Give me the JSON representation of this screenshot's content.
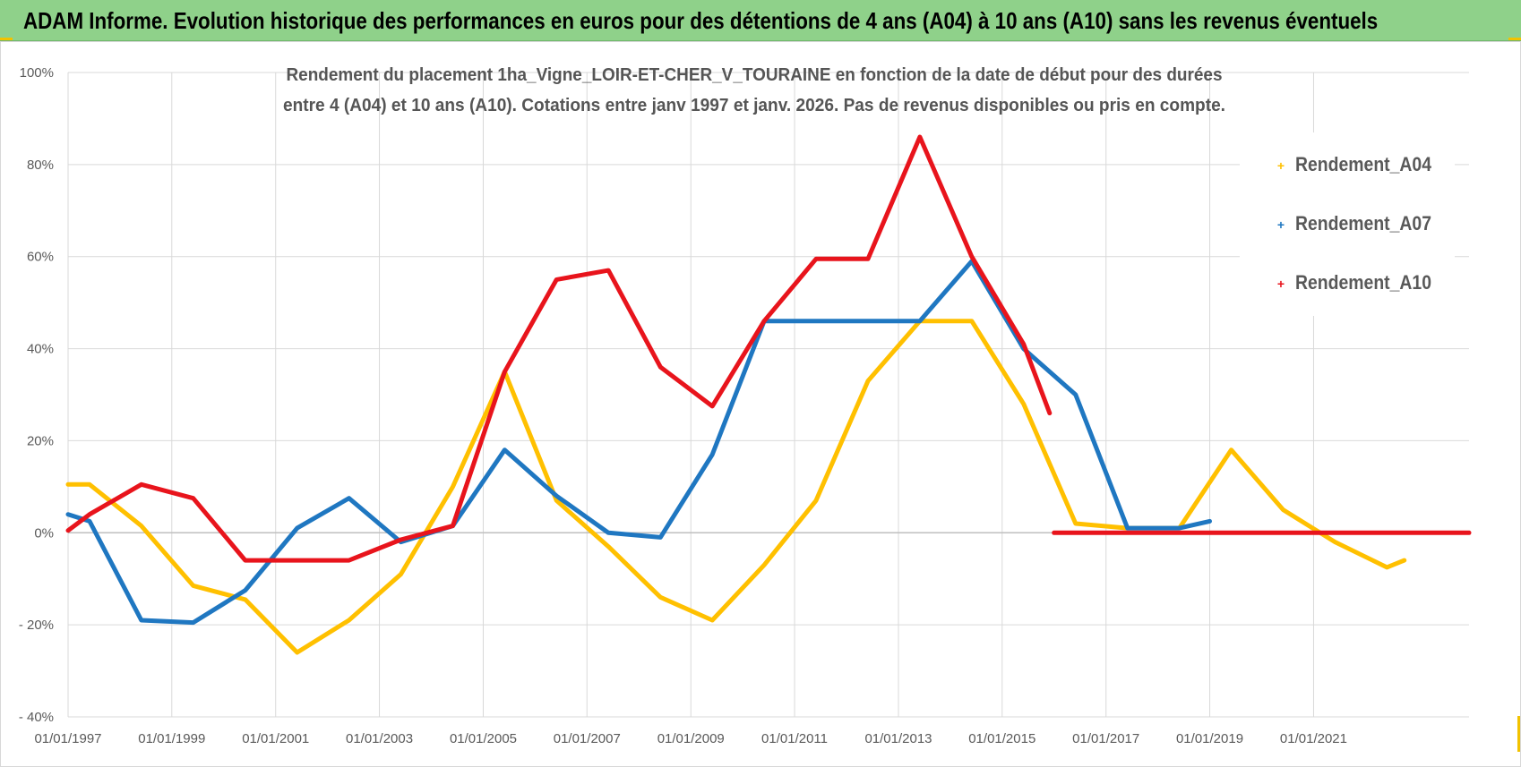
{
  "header": {
    "title": "ADAM Informe. Evolution historique des performances en euros pour des détentions de 4 ans (A04) à 10 ans (A10) sans les revenus éventuels"
  },
  "chart_data": {
    "type": "line",
    "title_lines": [
      "Rendement du placement 1ha_Vigne_LOIR-ET-CHER_V_TOURAINE en fonction de la date de début pour des durées",
      "entre 4 (A04) et 10 ans (A10).  Cotations entre janv 1997 et janv. 2026. Pas de revenus disponibles ou pris en compte."
    ],
    "xlabel": "",
    "ylabel": "",
    "xlim": [
      "1997-01-01",
      "2023-12-31"
    ],
    "ylim": [
      -40,
      100
    ],
    "x_ticks": [
      "01/01/1997",
      "01/01/1999",
      "01/01/2001",
      "01/01/2003",
      "01/01/2005",
      "01/01/2007",
      "01/01/2009",
      "01/01/2011",
      "01/01/2013",
      "01/01/2015",
      "01/01/2017",
      "01/01/2019",
      "01/01/2021"
    ],
    "y_ticks": [
      {
        "value": 100,
        "label": "100%"
      },
      {
        "value": 80,
        "label": "80%"
      },
      {
        "value": 60,
        "label": "60%"
      },
      {
        "value": 40,
        "label": "40%"
      },
      {
        "value": 20,
        "label": "20%"
      },
      {
        "value": 0,
        "label": "0%"
      },
      {
        "value": -20,
        "label": "- 20%"
      },
      {
        "value": -40,
        "label": "- 40%"
      }
    ],
    "grid": true,
    "legend_position": "top-right",
    "series": [
      {
        "name": "Rendement_A04",
        "color": "#ffc000",
        "points": [
          [
            "1997-01-01",
            10.5
          ],
          [
            "1997-06-01",
            10.5
          ],
          [
            "1998-06-01",
            1.5
          ],
          [
            "1999-06-01",
            -11.5
          ],
          [
            "2000-06-01",
            -14.5
          ],
          [
            "2001-06-01",
            -26
          ],
          [
            "2002-06-01",
            -19
          ],
          [
            "2003-06-01",
            -9
          ],
          [
            "2004-06-01",
            10
          ],
          [
            "2005-06-01",
            35
          ],
          [
            "2006-06-01",
            7
          ],
          [
            "2007-06-01",
            -3
          ],
          [
            "2008-06-01",
            -14
          ],
          [
            "2009-06-01",
            -19
          ],
          [
            "2010-06-01",
            -7
          ],
          [
            "2011-06-01",
            7
          ],
          [
            "2012-06-01",
            33
          ],
          [
            "2013-06-01",
            46
          ],
          [
            "2014-06-01",
            46
          ],
          [
            "2015-06-01",
            28
          ],
          [
            "2016-06-01",
            2
          ],
          [
            "2017-06-01",
            1
          ],
          [
            "2018-06-01",
            1
          ],
          [
            "2019-06-01",
            18
          ],
          [
            "2020-06-01",
            5
          ],
          [
            "2021-06-01",
            -2
          ],
          [
            "2022-06-01",
            -7.5
          ],
          [
            "2022-10-01",
            -6
          ]
        ]
      },
      {
        "name": "Rendement_A07",
        "color": "#1f77c1",
        "points": [
          [
            "1997-01-01",
            4
          ],
          [
            "1997-06-01",
            2.5
          ],
          [
            "1998-06-01",
            -19
          ],
          [
            "1999-06-01",
            -19.5
          ],
          [
            "2000-06-01",
            -12.5
          ],
          [
            "2001-06-01",
            1
          ],
          [
            "2002-06-01",
            7.5
          ],
          [
            "2003-06-01",
            -2
          ],
          [
            "2004-06-01",
            1.5
          ],
          [
            "2005-06-01",
            18
          ],
          [
            "2006-06-01",
            8
          ],
          [
            "2007-06-01",
            0
          ],
          [
            "2008-06-01",
            -1
          ],
          [
            "2009-06-01",
            17
          ],
          [
            "2010-06-01",
            46
          ],
          [
            "2011-06-01",
            46
          ],
          [
            "2012-06-01",
            46
          ],
          [
            "2013-06-01",
            46
          ],
          [
            "2014-06-01",
            59
          ],
          [
            "2015-06-01",
            40
          ],
          [
            "2016-06-01",
            30
          ],
          [
            "2017-06-01",
            1
          ],
          [
            "2018-06-01",
            1
          ],
          [
            "2019-01-01",
            2.5
          ]
        ]
      },
      {
        "name": "Rendement_A10",
        "color": "#e8141c",
        "points": [
          [
            "1997-01-01",
            0.5
          ],
          [
            "1997-06-01",
            4
          ],
          [
            "1998-06-01",
            10.5
          ],
          [
            "1999-06-01",
            7.5
          ],
          [
            "2000-06-01",
            -6
          ],
          [
            "2001-06-01",
            -6
          ],
          [
            "2002-06-01",
            -6
          ],
          [
            "2003-06-01",
            -1.5
          ],
          [
            "2004-06-01",
            1.5
          ],
          [
            "2005-06-01",
            35
          ],
          [
            "2006-06-01",
            55
          ],
          [
            "2007-06-01",
            57
          ],
          [
            "2008-06-01",
            36
          ],
          [
            "2009-06-01",
            27.5
          ],
          [
            "2010-06-01",
            46
          ],
          [
            "2011-06-01",
            59.5
          ],
          [
            "2012-06-01",
            59.5
          ],
          [
            "2013-06-01",
            86
          ],
          [
            "2014-06-01",
            60
          ],
          [
            "2015-06-01",
            41
          ],
          [
            "2015-12-01",
            26
          ]
        ]
      },
      {
        "name": "Rendement_A10",
        "color": "#e8141c",
        "points": [
          [
            "2016-01-01",
            0
          ],
          [
            "2023-12-31",
            0
          ]
        ]
      }
    ]
  }
}
